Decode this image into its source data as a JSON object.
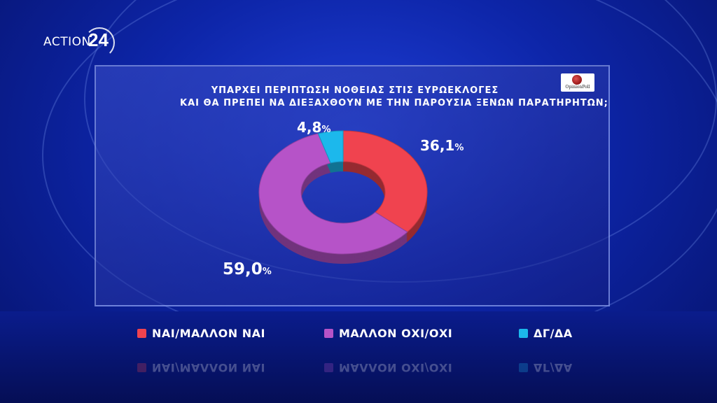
{
  "brand": {
    "name": "ACTION",
    "number": "24"
  },
  "pollster": "OpinionPoll",
  "chart_data": {
    "type": "pie",
    "title": "ΥΠΑΡΧΕΙ ΠΕΡΙΠΤΩΣΗ ΝΟΘΕΙΑΣ ΣΤΙΣ ΕΥΡΩΕΚΛΟΓΕΣ ΚΑΙ ΘΑ ΠΡΕΠΕΙ ΝΑ ΔΙΕΞΑΧΘΟΥΝ ΜΕ ΤΗΝ ΠΑΡΟΥΣΙΑ ΞΕΝΩΝ ΠΑΡΑΤΗΡΗΤΩΝ;",
    "title_lines": [
      "ΥΠΑΡΧΕΙ ΠΕΡΙΠΤΩΣΗ ΝΟΘΕΙΑΣ ΣΤΙΣ ΕΥΡΩΕΚΛΟΓΕΣ",
      "ΚΑΙ ΘΑ ΠΡΕΠΕΙ ΝΑ ΔΙΕΞΑΧΘΟΥΝ ΜΕ ΤΗΝ ΠΑΡΟΥΣΙΑ ΞΕΝΩΝ ΠΑΡΑΤΗΡΗΤΩΝ;"
    ],
    "donut": true,
    "unit": "%",
    "legend_position": "bottom",
    "slices": [
      {
        "label": "ΝΑΙ/ΜΑΛΛΟΝ ΝΑΙ",
        "value": 36.1,
        "display": "36,1",
        "color": "#f0434f"
      },
      {
        "label": "ΜΑΛΛΟΝ ΟΧΙ/ΟΧΙ",
        "value": 59.0,
        "display": "59,0",
        "color": "#b653c8"
      },
      {
        "label": "ΔΓ/ΔΑ",
        "value": 4.8,
        "display": "4,8",
        "color": "#1cb8ec"
      }
    ]
  }
}
